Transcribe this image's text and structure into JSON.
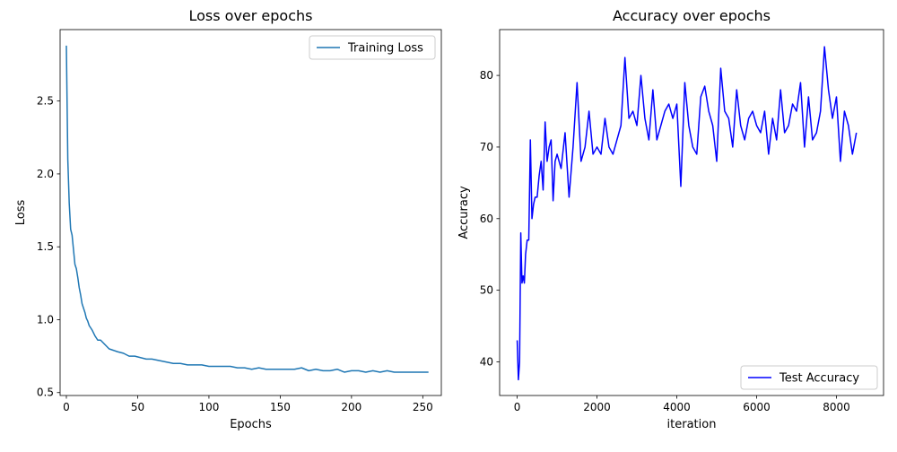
{
  "chart_data": [
    {
      "type": "line",
      "title": "Loss over epochs",
      "xlabel": "Epochs",
      "ylabel": "Loss",
      "xlim": [
        -4.4,
        263
      ],
      "ylim": [
        0.48,
        2.99
      ],
      "xticks": [
        0,
        50,
        100,
        150,
        200,
        250
      ],
      "xtick_labels": [
        "0",
        "50",
        "100",
        "150",
        "200",
        "250"
      ],
      "yticks": [
        0.5,
        1.0,
        1.5,
        2.0,
        2.5
      ],
      "ytick_labels": [
        "0.5",
        "1.0",
        "1.5",
        "2.0",
        "2.5"
      ],
      "grid": false,
      "legend_position": "top-right",
      "series": [
        {
          "name": "Training Loss",
          "color": "#1f77b4",
          "x": [
            0,
            1,
            2,
            3,
            4,
            5,
            6,
            7,
            8,
            9,
            10,
            11,
            12,
            13,
            14,
            15,
            16,
            18,
            20,
            22,
            24,
            26,
            28,
            30,
            33,
            36,
            40,
            44,
            48,
            52,
            56,
            60,
            65,
            70,
            75,
            80,
            85,
            90,
            95,
            100,
            105,
            110,
            115,
            120,
            125,
            130,
            135,
            140,
            145,
            150,
            155,
            160,
            165,
            170,
            175,
            180,
            185,
            190,
            195,
            200,
            205,
            210,
            215,
            220,
            225,
            230,
            235,
            240,
            245,
            250,
            254
          ],
          "y": [
            2.88,
            2.1,
            1.8,
            1.62,
            1.58,
            1.48,
            1.38,
            1.35,
            1.29,
            1.22,
            1.17,
            1.11,
            1.08,
            1.05,
            1.01,
            0.99,
            0.96,
            0.93,
            0.89,
            0.86,
            0.86,
            0.84,
            0.82,
            0.8,
            0.79,
            0.78,
            0.77,
            0.75,
            0.75,
            0.74,
            0.73,
            0.73,
            0.72,
            0.71,
            0.7,
            0.7,
            0.69,
            0.69,
            0.69,
            0.68,
            0.68,
            0.68,
            0.68,
            0.67,
            0.67,
            0.66,
            0.67,
            0.66,
            0.66,
            0.66,
            0.66,
            0.66,
            0.67,
            0.65,
            0.66,
            0.65,
            0.65,
            0.66,
            0.64,
            0.65,
            0.65,
            0.64,
            0.65,
            0.64,
            0.65,
            0.64,
            0.64,
            0.64,
            0.64,
            0.64,
            0.64
          ]
        }
      ]
    },
    {
      "type": "line",
      "title": "Accuracy over epochs",
      "xlabel": "iteration",
      "ylabel": "Accuracy",
      "xlim": [
        -440,
        9180
      ],
      "ylim": [
        35.3,
        86.4
      ],
      "xticks": [
        0,
        2000,
        4000,
        6000,
        8000
      ],
      "xtick_labels": [
        "0",
        "2000",
        "4000",
        "6000",
        "8000"
      ],
      "yticks": [
        40,
        50,
        60,
        70,
        80
      ],
      "ytick_labels": [
        "40",
        "50",
        "60",
        "70",
        "80"
      ],
      "grid": false,
      "legend_position": "bottom-right",
      "series": [
        {
          "name": "Test Accuracy",
          "color": "#0000ff",
          "x": [
            0,
            30,
            60,
            90,
            120,
            150,
            180,
            210,
            250,
            290,
            330,
            370,
            410,
            450,
            500,
            550,
            600,
            650,
            700,
            750,
            800,
            850,
            900,
            950,
            1000,
            1100,
            1200,
            1300,
            1400,
            1500,
            1600,
            1700,
            1800,
            1900,
            2000,
            2100,
            2200,
            2300,
            2400,
            2500,
            2600,
            2700,
            2800,
            2900,
            3000,
            3100,
            3200,
            3300,
            3400,
            3500,
            3600,
            3700,
            3800,
            3900,
            4000,
            4100,
            4200,
            4300,
            4400,
            4500,
            4600,
            4700,
            4800,
            4900,
            5000,
            5100,
            5200,
            5300,
            5400,
            5500,
            5600,
            5700,
            5800,
            5900,
            6000,
            6100,
            6200,
            6300,
            6400,
            6500,
            6600,
            6700,
            6800,
            6900,
            7000,
            7100,
            7200,
            7300,
            7400,
            7500,
            7600,
            7700,
            7800,
            7900,
            8000,
            8100,
            8200,
            8300,
            8400,
            8500
          ],
          "y": [
            43,
            37.5,
            40,
            58,
            51,
            52,
            51,
            55,
            57,
            57,
            71,
            60,
            62,
            63,
            63,
            66,
            68,
            64,
            73.5,
            68,
            70,
            71,
            62.5,
            68,
            69,
            67,
            72,
            63,
            70,
            79,
            68,
            70,
            75,
            69,
            70,
            69,
            74,
            70,
            69,
            71,
            73,
            82.5,
            74,
            75,
            73,
            80,
            74,
            71,
            78,
            71,
            73,
            75,
            76,
            74,
            76,
            64.5,
            79,
            73,
            70,
            69,
            77,
            78.5,
            75,
            73,
            68,
            81,
            75,
            74,
            70,
            78,
            73,
            71,
            74,
            75,
            73,
            72,
            75,
            69,
            74,
            71,
            78,
            72,
            73,
            76,
            75,
            79,
            70,
            77,
            71,
            72,
            75,
            84,
            78,
            74,
            77,
            68,
            75,
            73,
            69,
            72
          ]
        }
      ]
    }
  ]
}
